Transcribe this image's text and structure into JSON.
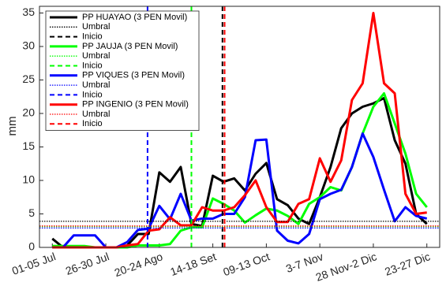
{
  "chart_data": {
    "type": "line",
    "y_label": "mm",
    "categories": [
      "01-05 Jul",
      null,
      null,
      null,
      null,
      "26-30 Jul",
      null,
      null,
      null,
      null,
      "20-24 Ago",
      null,
      null,
      null,
      null,
      "14-18 Set",
      null,
      null,
      null,
      null,
      "09-13 Oct",
      null,
      null,
      null,
      null,
      "3-7 Nov",
      null,
      null,
      null,
      null,
      "28 Nov-2 Dic",
      null,
      null,
      null,
      null,
      "23-27 Dic"
    ],
    "ylim": [
      0,
      36
    ],
    "yticks": [
      0,
      5,
      10,
      15,
      20,
      25,
      30,
      35
    ],
    "series": [
      {
        "name": "PP HUAYAO (3 PEN Movil)",
        "color": "#000000",
        "umbral_label": "Umbral",
        "inicio_label": "Inicio",
        "umbral": 3.9,
        "inicio": 15.9,
        "values": [
          1.3,
          0,
          0,
          0,
          0,
          0,
          0,
          0.3,
          2,
          2,
          11.2,
          9.8,
          12,
          3.5,
          3.2,
          10.7,
          9.8,
          10.3,
          8.5,
          11,
          12.6,
          7.2,
          6.3,
          4.3,
          3.5,
          7.5,
          12,
          17.8,
          20,
          21,
          21.5,
          22.3,
          16,
          12.5,
          5,
          3.5
        ]
      },
      {
        "name": "PP JAUJA (3 PEN Movil)",
        "color": "#00ff00",
        "umbral_label": "Umbral",
        "inicio_label": "Inicio",
        "umbral": 3.1,
        "inicio": 13,
        "values": [
          0.2,
          0.2,
          0.2,
          0.2,
          0,
          0,
          0,
          0,
          0.3,
          0.3,
          0.3,
          0.5,
          2.5,
          3,
          3,
          7.3,
          6.5,
          5.5,
          3.7,
          4.8,
          5.8,
          5.5,
          4.7,
          3.5,
          6.5,
          7.5,
          9,
          8.5,
          12,
          17,
          21,
          23,
          18.5,
          14,
          8,
          6
        ]
      },
      {
        "name": "PP VIQUES (3 PEN Movil)",
        "color": "#0000ff",
        "umbral_label": "Umbral",
        "inicio_label": "Inicio",
        "umbral": 2.9,
        "inicio": 8.9,
        "values": [
          0,
          0,
          1.8,
          1.8,
          1.8,
          0,
          0,
          0.8,
          2.6,
          2.8,
          6.2,
          4.2,
          8,
          4,
          4.3,
          4.3,
          5,
          5,
          7.5,
          16,
          16.1,
          2.5,
          1,
          0.6,
          2,
          7.2,
          8,
          8.6,
          12,
          17,
          13.5,
          8.6,
          3.9,
          6,
          4.7,
          4.3
        ]
      },
      {
        "name": "PP INGENIO (3 PEN Movil)",
        "color": "#ff0000",
        "umbral_label": "Umbral",
        "inicio_label": "Inicio",
        "umbral": 3.2,
        "inicio": 16.1,
        "values": [
          0,
          0,
          0,
          0,
          0,
          0,
          0,
          0.3,
          0.5,
          2.5,
          2.7,
          4.5,
          3.3,
          3.3,
          6,
          5.5,
          5.5,
          6,
          7.8,
          10,
          6,
          3.8,
          3.8,
          6.5,
          7.2,
          13.3,
          9.8,
          13,
          22,
          24.5,
          35,
          24.5,
          23,
          8,
          5,
          5.2
        ]
      }
    ]
  }
}
